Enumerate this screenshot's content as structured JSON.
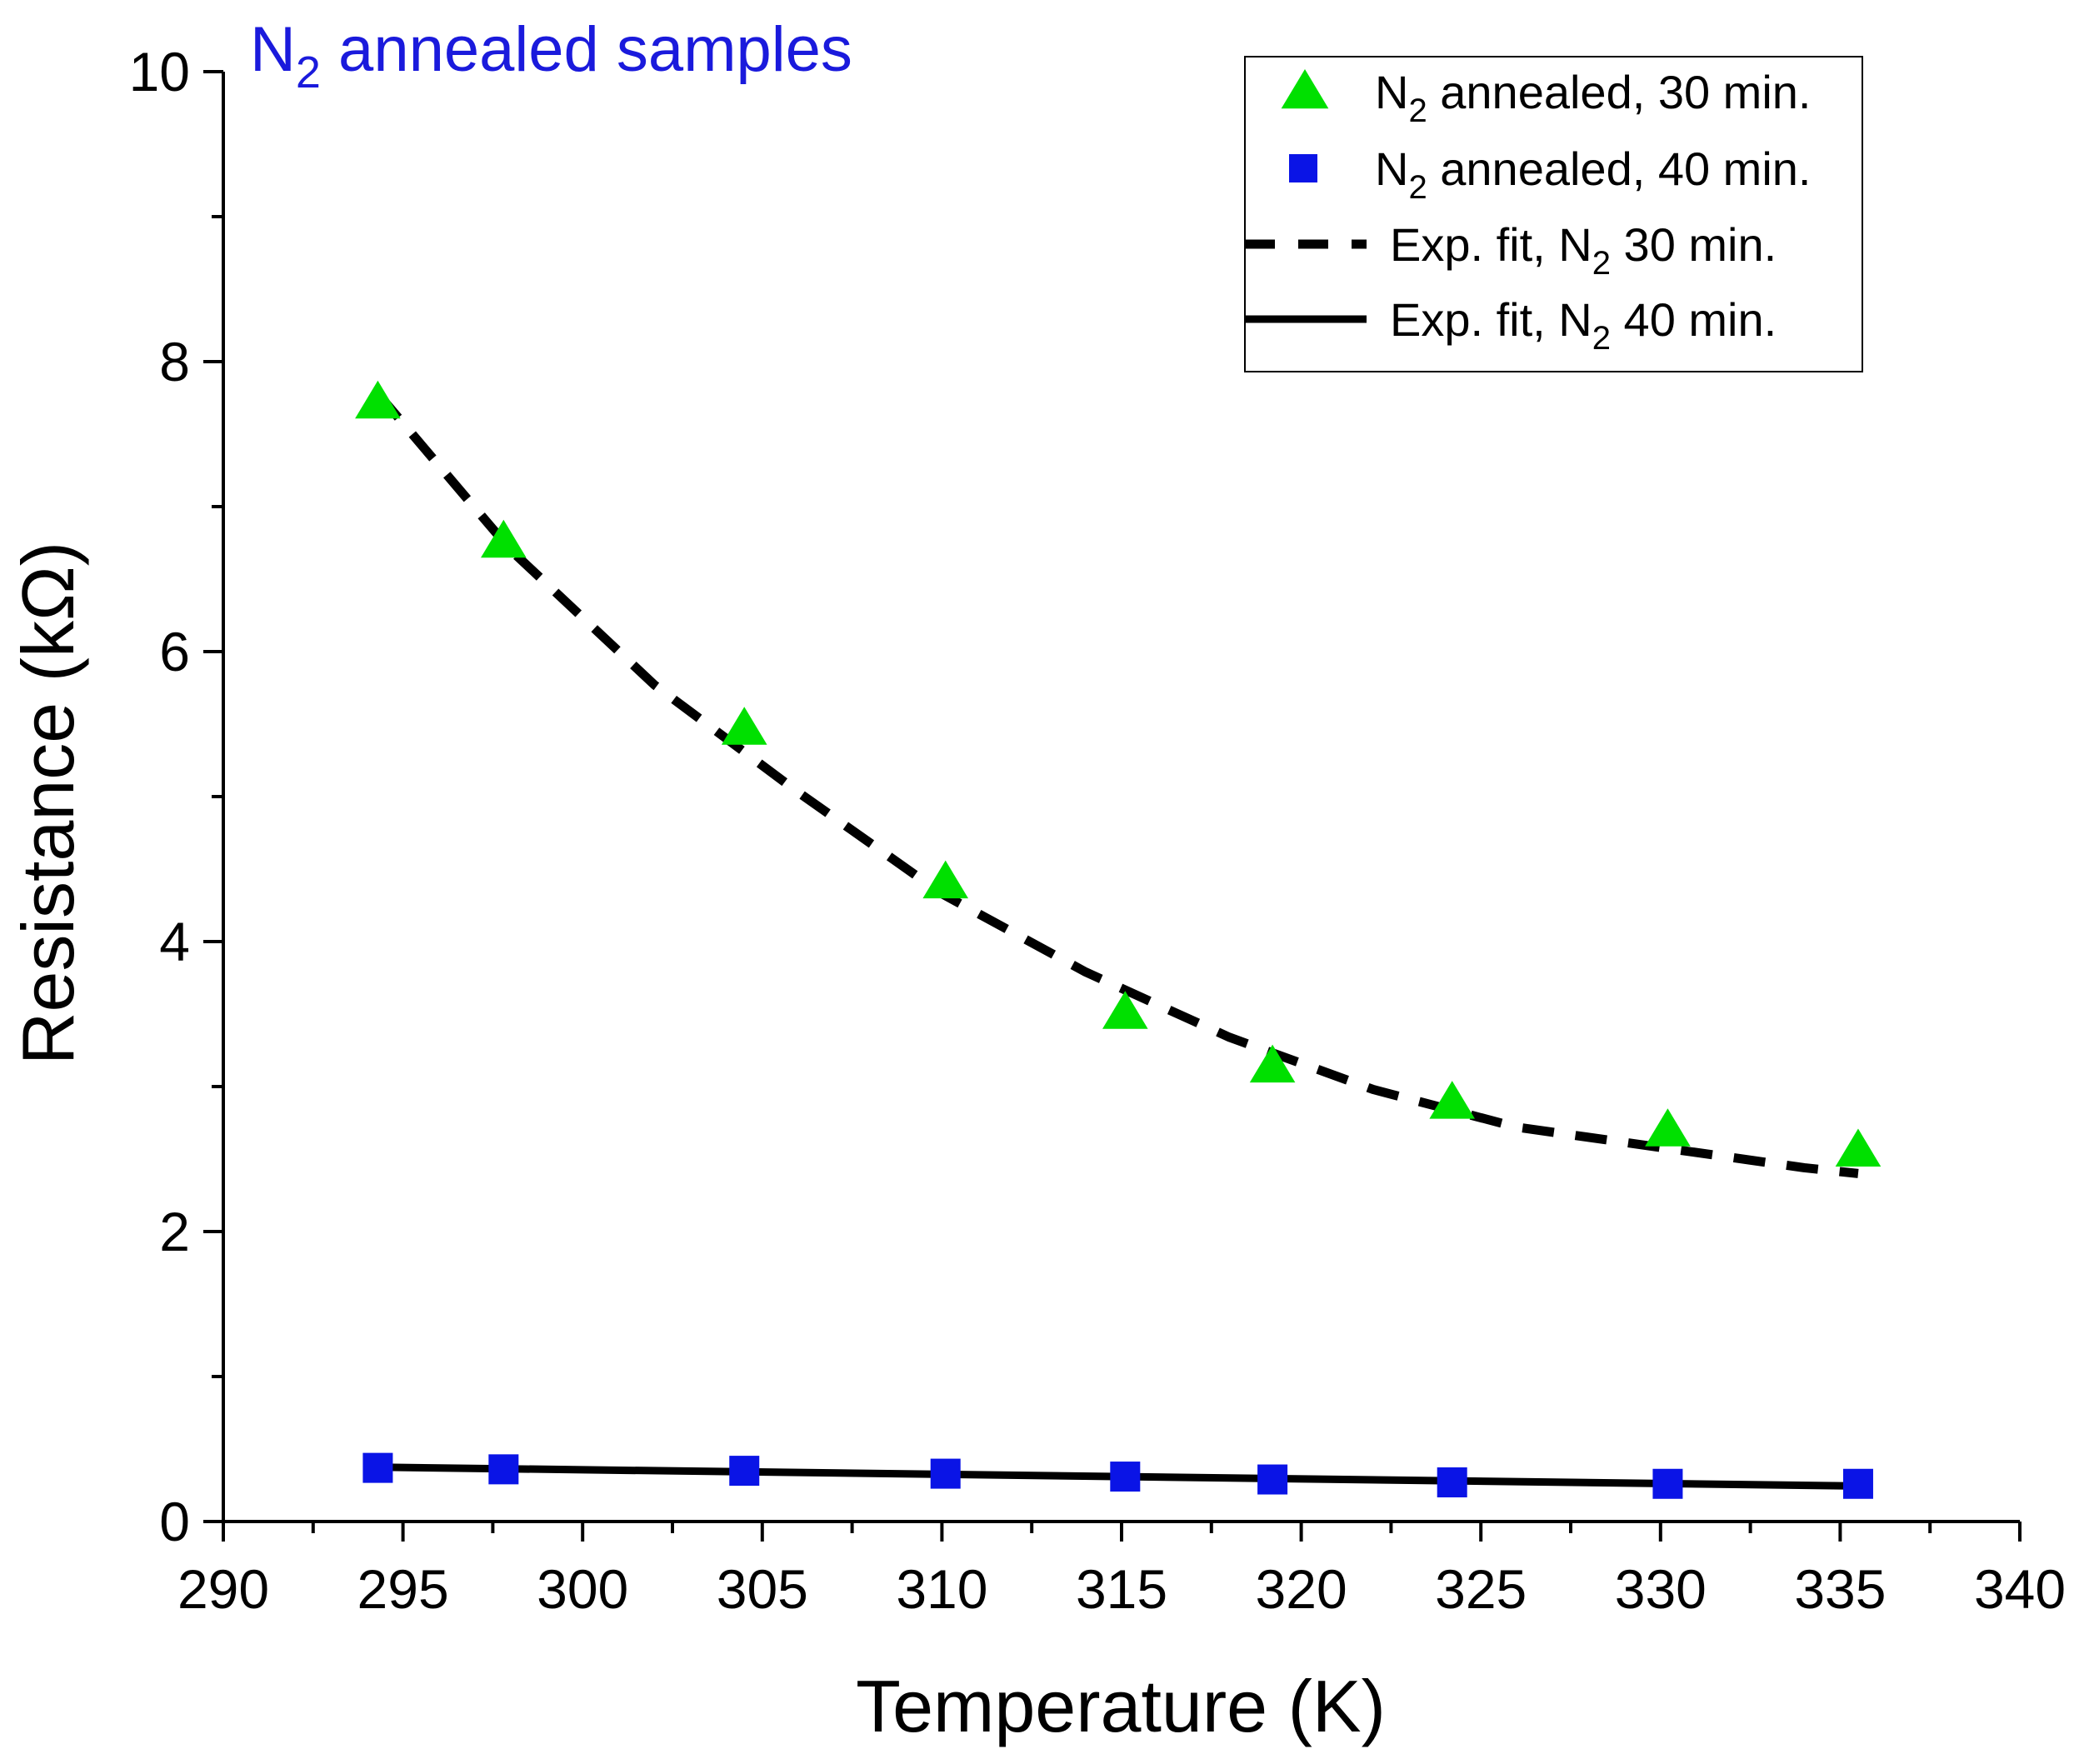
{
  "chart_data": {
    "type": "scatter",
    "title": "N",
    "title_sub": "2",
    "title_rest": " annealed samples",
    "xlabel": "Temperature (K)",
    "ylabel": "Resistance (kΩ)",
    "xlim": [
      290,
      340
    ],
    "ylim": [
      0,
      10
    ],
    "x_ticks": [
      290,
      295,
      300,
      305,
      310,
      315,
      320,
      325,
      330,
      335,
      340
    ],
    "x_tick_labels": [
      "290",
      "295",
      "300",
      "305",
      "310",
      "315",
      "320",
      "325",
      "330",
      "335",
      "340"
    ],
    "y_ticks": [
      0,
      2,
      4,
      6,
      8,
      10
    ],
    "y_tick_labels": [
      "0",
      "2",
      "4",
      "6",
      "8",
      "10"
    ],
    "legend_position": "top-right",
    "colors": {
      "series1": "#00e000",
      "series2": "#0a14e6",
      "fit": "#000000",
      "title": "#1a1adc",
      "axis": "#000000"
    },
    "series": [
      {
        "name": "N2 annealed, 30 min.",
        "marker": "triangle",
        "x": [
          294.3,
          297.8,
          304.5,
          310.1,
          315.1,
          319.2,
          324.2,
          330.2,
          335.5
        ],
        "y": [
          7.72,
          6.76,
          5.47,
          4.41,
          3.51,
          3.14,
          2.89,
          2.7,
          2.56
        ]
      },
      {
        "name": "N2 annealed, 40 min.",
        "marker": "square",
        "x": [
          294.3,
          297.8,
          304.5,
          310.1,
          315.1,
          319.2,
          324.2,
          330.2,
          335.5
        ],
        "y": [
          0.37,
          0.36,
          0.35,
          0.33,
          0.31,
          0.29,
          0.27,
          0.26,
          0.26
        ]
      },
      {
        "name": "Exp. fit, N2 30 min.",
        "style": "dashed",
        "x": [
          294.3,
          298,
          302,
          306,
          310,
          314,
          318,
          322,
          326,
          330,
          334,
          335.5
        ],
        "y": [
          7.78,
          6.7,
          5.77,
          5.03,
          4.33,
          3.79,
          3.34,
          2.98,
          2.72,
          2.58,
          2.44,
          2.4
        ]
      },
      {
        "name": "Exp. fit, N2 40 min.",
        "style": "solid",
        "x": [
          294.3,
          335.5
        ],
        "y": [
          0.375,
          0.245
        ]
      }
    ],
    "legend": [
      {
        "pre": "N",
        "sub": "2",
        "post": " annealed, 30 min."
      },
      {
        "pre": "N",
        "sub": "2",
        "post": " annealed, 40 min."
      },
      {
        "pre": "Exp. fit, N",
        "sub": "2",
        "post": " 30 min."
      },
      {
        "pre": "Exp. fit, N",
        "sub": "2",
        "post": " 40 min."
      }
    ]
  }
}
